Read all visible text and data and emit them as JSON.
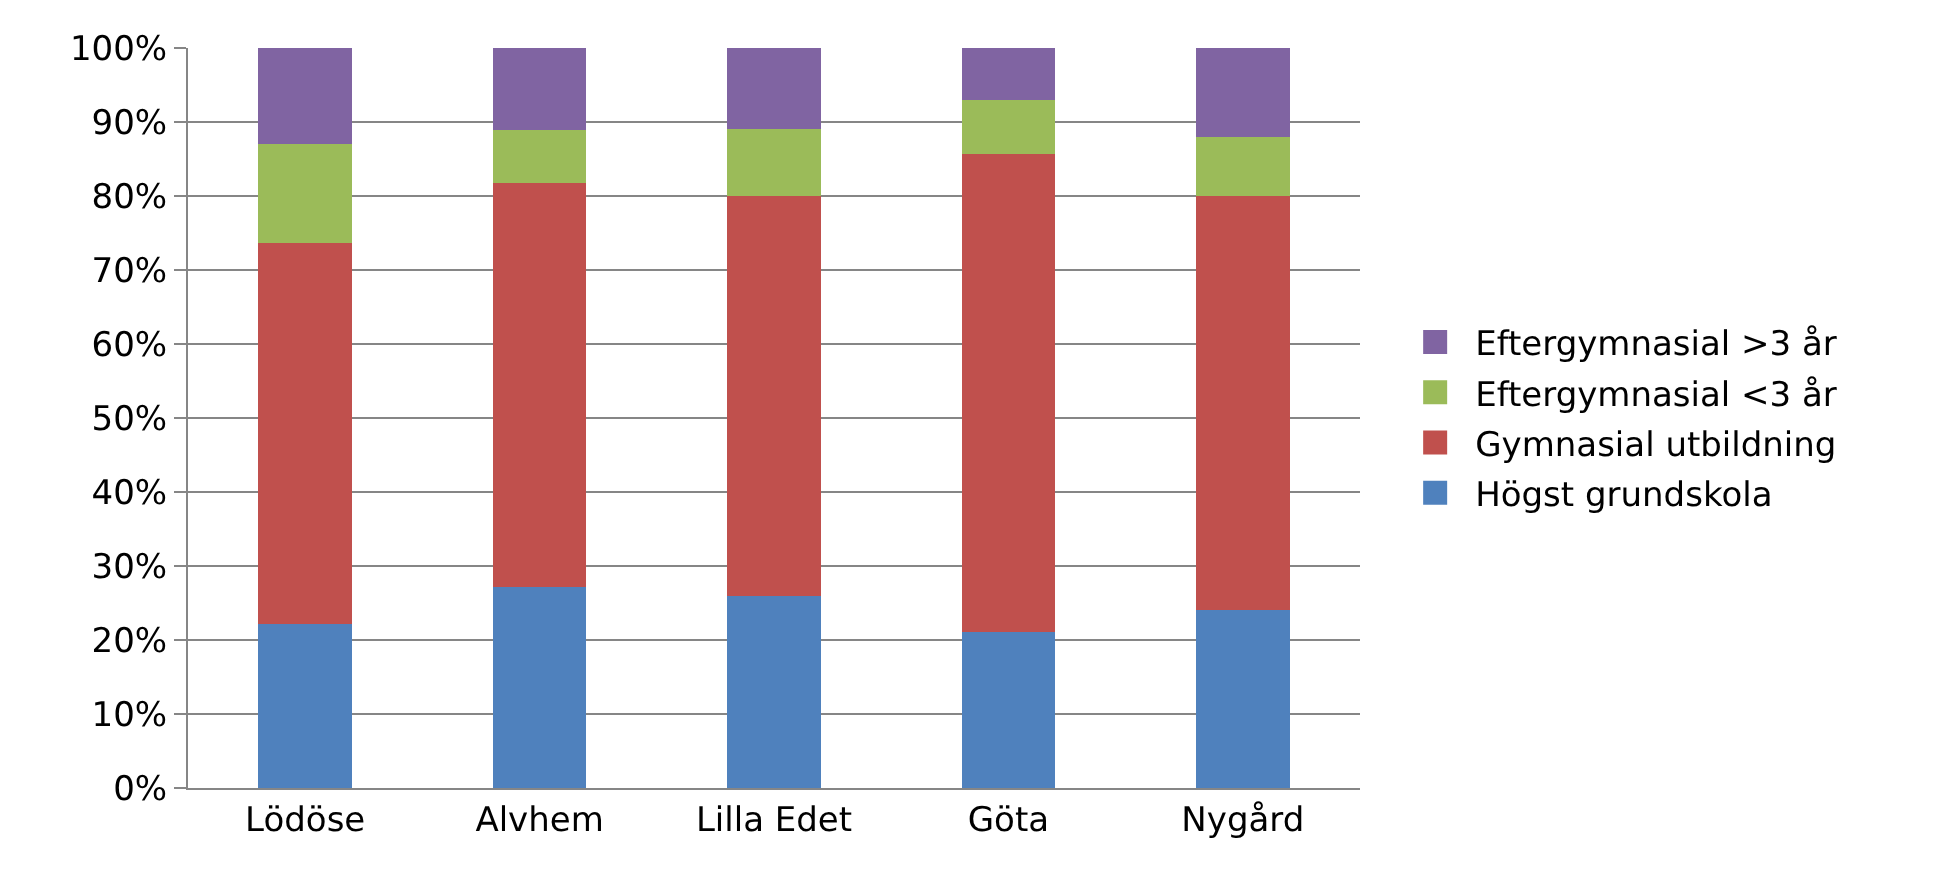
{
  "chart_data": {
    "type": "bar",
    "stacked": true,
    "categories": [
      "Lödöse",
      "Alvhem",
      "Lilla Edet",
      "Göta",
      "Nygård"
    ],
    "series": [
      {
        "name": "Högst grundskola",
        "color": "#4f81bd",
        "values": [
          22.2,
          27.2,
          26.0,
          21.1,
          24.0
        ]
      },
      {
        "name": "Gymnasial utbildning",
        "color": "#c0504d",
        "values": [
          51.4,
          54.5,
          54.0,
          64.6,
          56.0
        ]
      },
      {
        "name": "Eftergymnasial <3 år",
        "color": "#9bbb59",
        "values": [
          13.4,
          7.2,
          9.0,
          7.3,
          8.0
        ]
      },
      {
        "name": "Eftergymnasial >3 år",
        "color": "#8064a2",
        "values": [
          13.0,
          11.1,
          11.0,
          7.0,
          12.0
        ]
      }
    ],
    "ylim": [
      0,
      100
    ],
    "yticks": [
      {
        "value": 0,
        "label": "0%"
      },
      {
        "value": 10,
        "label": "10%"
      },
      {
        "value": 20,
        "label": "20%"
      },
      {
        "value": 30,
        "label": "30%"
      },
      {
        "value": 40,
        "label": "40%"
      },
      {
        "value": 50,
        "label": "50%"
      },
      {
        "value": 60,
        "label": "60%"
      },
      {
        "value": 70,
        "label": "70%"
      },
      {
        "value": 80,
        "label": "80%"
      },
      {
        "value": 90,
        "label": "90%"
      },
      {
        "value": 100,
        "label": "100%"
      }
    ],
    "grid": "y",
    "legend": "right"
  }
}
